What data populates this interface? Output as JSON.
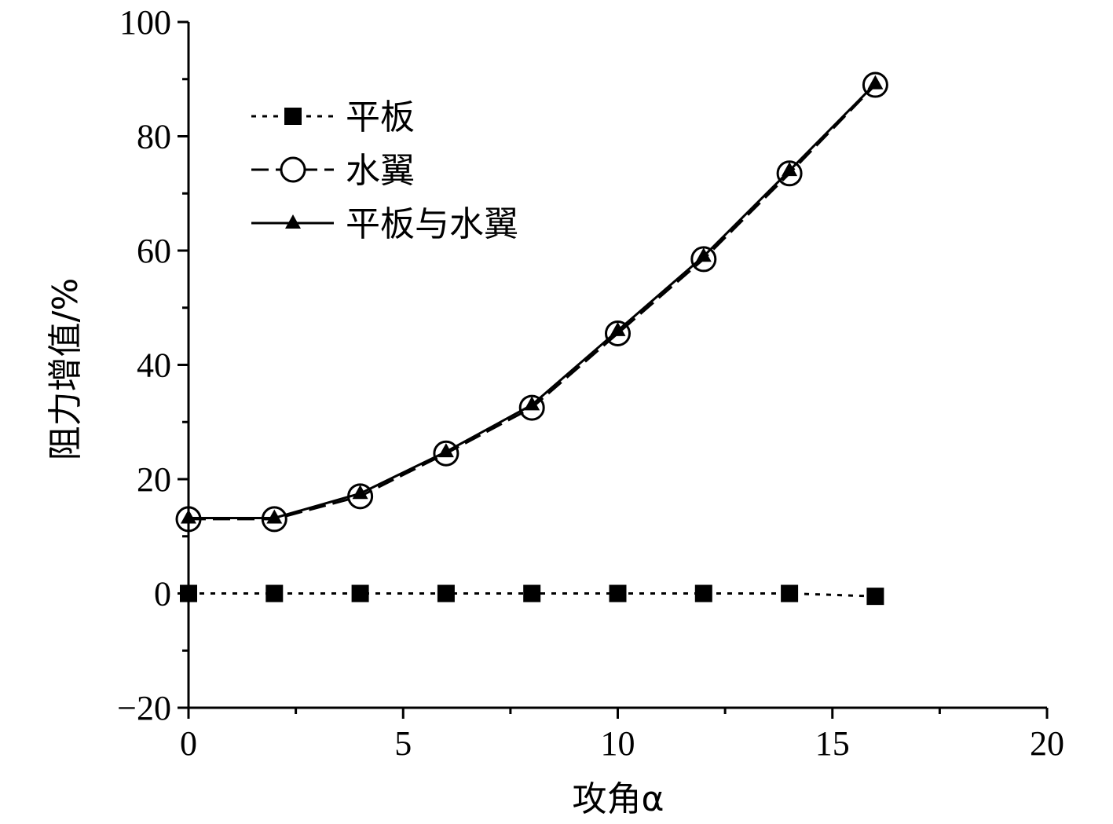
{
  "chart_data": {
    "type": "line",
    "xlabel": "攻角α",
    "ylabel": "阻力增值/%",
    "xlim": [
      0,
      20
    ],
    "ylim": [
      -20,
      100
    ],
    "xticks": [
      0,
      5,
      10,
      15,
      20
    ],
    "yticks": [
      -20,
      0,
      20,
      40,
      60,
      80,
      100
    ],
    "x_tick_labels": [
      "0",
      "5",
      "10",
      "15",
      "20"
    ],
    "y_tick_labels": [
      "−20",
      "0",
      "20",
      "40",
      "60",
      "80",
      "100"
    ],
    "grid": false,
    "legend_position": "top-left",
    "x": [
      0,
      2,
      4,
      6,
      8,
      10,
      12,
      14,
      16
    ],
    "series": [
      {
        "name": "平板",
        "line": "dotted",
        "marker": "filled-square",
        "values": [
          0,
          0,
          0,
          0,
          0,
          0,
          0,
          0,
          -0.5
        ]
      },
      {
        "name": "水翼",
        "line": "dashed",
        "marker": "open-circle",
        "values": [
          13,
          13,
          17,
          24.5,
          32.5,
          45.5,
          58.5,
          73.5,
          89
        ]
      },
      {
        "name": "平板与水翼",
        "line": "solid",
        "marker": "filled-triangle",
        "values": [
          13.2,
          13.2,
          17.5,
          24.8,
          33,
          46,
          59,
          74,
          89.2
        ]
      }
    ]
  }
}
